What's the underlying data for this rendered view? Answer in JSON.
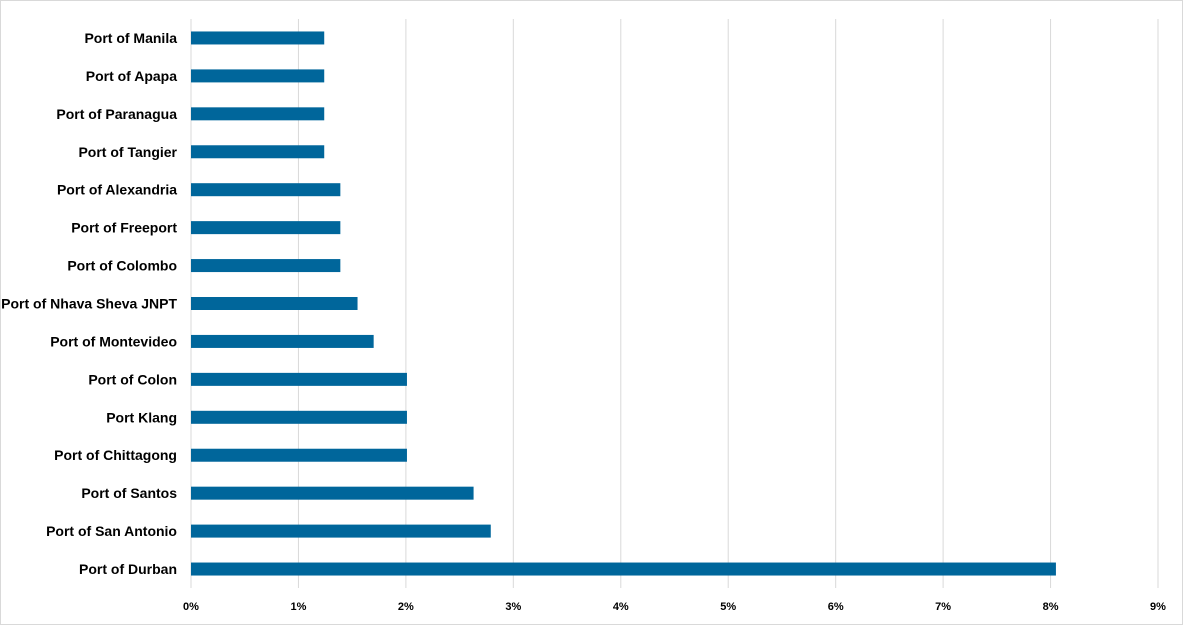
{
  "chart_data": {
    "type": "bar",
    "orientation": "horizontal",
    "categories": [
      "Port of Manila",
      "Port of Apapa",
      "Port of Paranagua",
      "Port of Tangier",
      "Port of Alexandria",
      "Port of Freeport",
      "Port of Colombo",
      "Port of Nhava Sheva JNPT",
      "Port of Montevideo",
      "Port of Colon",
      "Port Klang",
      "Port of Chittagong",
      "Port of Santos",
      "Port of San Antonio",
      "Port of Durban"
    ],
    "values": [
      1.24,
      1.24,
      1.24,
      1.24,
      1.39,
      1.39,
      1.39,
      1.55,
      1.7,
      2.01,
      2.01,
      2.01,
      2.63,
      2.79,
      8.05
    ],
    "unit": "%",
    "xlim": [
      0,
      9
    ],
    "xticks": [
      "0%",
      "1%",
      "2%",
      "3%",
      "4%",
      "5%",
      "6%",
      "7%",
      "8%",
      "9%"
    ],
    "title": "",
    "xlabel": "",
    "ylabel": "",
    "grid": "vertical",
    "legend": "none",
    "bar_color": "#00669b",
    "grid_color": "#d9d9d9"
  }
}
